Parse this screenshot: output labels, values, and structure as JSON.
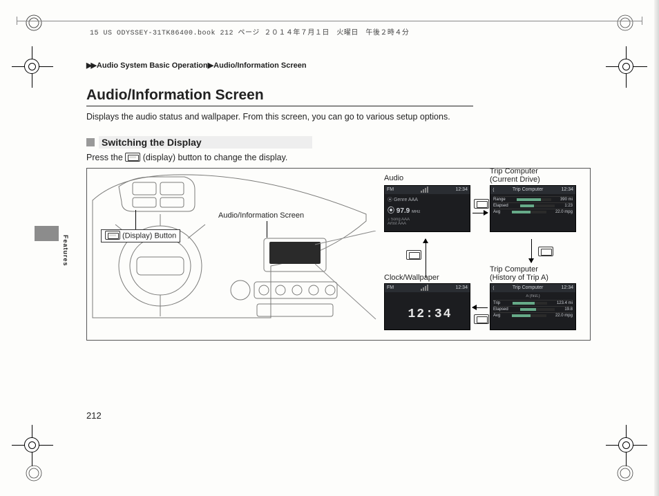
{
  "header": {
    "book_line": "15 US ODYSSEY-31TK86400.book  212 ページ  ２０１４年７月１日　火曜日　午後２時４分"
  },
  "breadcrumb": {
    "arrows": "▶▶",
    "level1": "Audio System Basic Operation",
    "sep": "▶",
    "level2": "Audio/Information Screen"
  },
  "section": {
    "title": "Audio/Information Screen",
    "intro": "Displays the audio status and wallpaper. From this screen, you can go to various setup options.",
    "sub_heading": "Switching the Display",
    "instruction_pre": "Press the ",
    "instruction_post": " (display) button to change the display."
  },
  "diagram": {
    "callout_display_button": "(Display) Button",
    "callout_info_screen": "Audio/Information Screen",
    "labels": {
      "audio": "Audio",
      "trip_current": "Trip Computer\n(Current Drive)",
      "clock": "Clock/Wallpaper",
      "trip_history": "Trip Computer\n(History of Trip A)"
    },
    "screens": {
      "audio": {
        "band": "FM",
        "time": "12:34",
        "line1": "Genre AAA",
        "freq": "97.9",
        "freq_unit": "MHz",
        "song": "Song AAA",
        "artist": "Artist AAA"
      },
      "trip_current": {
        "title": "Trip Computer",
        "time": "12:34",
        "rows": [
          {
            "label": "Range",
            "value": "390 mi",
            "pct": 70
          },
          {
            "label": "Elapsed",
            "value": "1:23",
            "pct": 40
          },
          {
            "label": "Avg",
            "value": "22.0 mpg",
            "pct": 55
          }
        ]
      },
      "clock": {
        "band": "FM",
        "time_small": "12:34",
        "digits": "12:34"
      },
      "trip_history": {
        "title": "Trip Computer",
        "subtitle": "A (hist.)",
        "time": "12:34",
        "rows": [
          {
            "label": "Trip",
            "value": "123.4 mi",
            "pct": 65
          },
          {
            "label": "Elapsed",
            "value": "19.8",
            "pct": 45
          },
          {
            "label": "Avg",
            "value": "22.0 mpg",
            "pct": 55
          }
        ]
      }
    }
  },
  "side": {
    "tab": "Features"
  },
  "page_number": "212",
  "colors": {
    "screen_bg": "#1c1d20",
    "screen_bar": "#2a2d32",
    "text": "#222222",
    "grey_block": "#8c8c8c"
  }
}
